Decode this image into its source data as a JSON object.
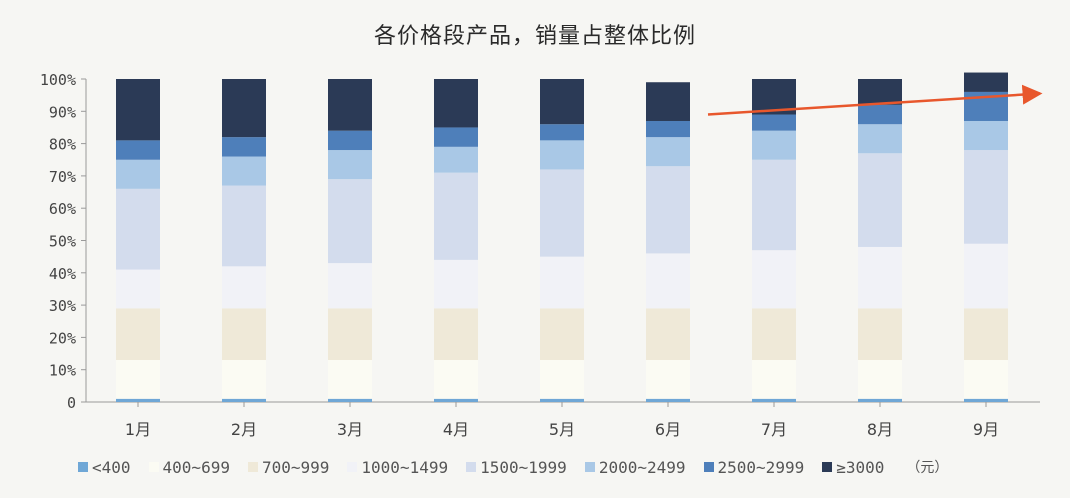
{
  "chart_data": {
    "type": "bar",
    "stacked": true,
    "title": "各价格段产品，销量占整体比例",
    "categories": [
      "1月",
      "2月",
      "3月",
      "4月",
      "5月",
      "6月",
      "7月",
      "8月",
      "9月"
    ],
    "y_tick_labels": [
      "0",
      "10%",
      "20%",
      "30%",
      "40%",
      "50%",
      "60%",
      "70%",
      "80%",
      "90%",
      "100%"
    ],
    "ylim": [
      0,
      100
    ],
    "unit_label": "（元）",
    "series": [
      {
        "name": "<400",
        "color": "#6fa7d6",
        "values": [
          1,
          1,
          1,
          1,
          1,
          1,
          1,
          1,
          1
        ]
      },
      {
        "name": "400~699",
        "color": "#fbfbf3",
        "values": [
          12,
          12,
          12,
          12,
          12,
          12,
          12,
          12,
          12
        ]
      },
      {
        "name": "700~999",
        "color": "#efe9d8",
        "values": [
          16,
          16,
          16,
          16,
          16,
          16,
          16,
          16,
          16
        ]
      },
      {
        "name": "1000~1499",
        "color": "#f1f2f7",
        "values": [
          12,
          13,
          14,
          15,
          16,
          17,
          18,
          19,
          20
        ]
      },
      {
        "name": "1500~1999",
        "color": "#d3dced",
        "values": [
          25,
          25,
          26,
          27,
          27,
          27,
          28,
          29,
          29
        ]
      },
      {
        "name": "2000~2499",
        "color": "#a9c8e6",
        "values": [
          9,
          9,
          9,
          8,
          9,
          9,
          9,
          9,
          9
        ]
      },
      {
        "name": "2500~2999",
        "color": "#4e7fba",
        "values": [
          6,
          6,
          6,
          6,
          5,
          5,
          5,
          6,
          9
        ]
      },
      {
        "name": "≥3000",
        "color": "#2b3a56",
        "values": [
          19,
          18,
          16,
          15,
          14,
          12,
          11,
          8,
          6
        ]
      }
    ],
    "legend_position": "bottom",
    "trend_arrow_color": "#e8572c"
  }
}
